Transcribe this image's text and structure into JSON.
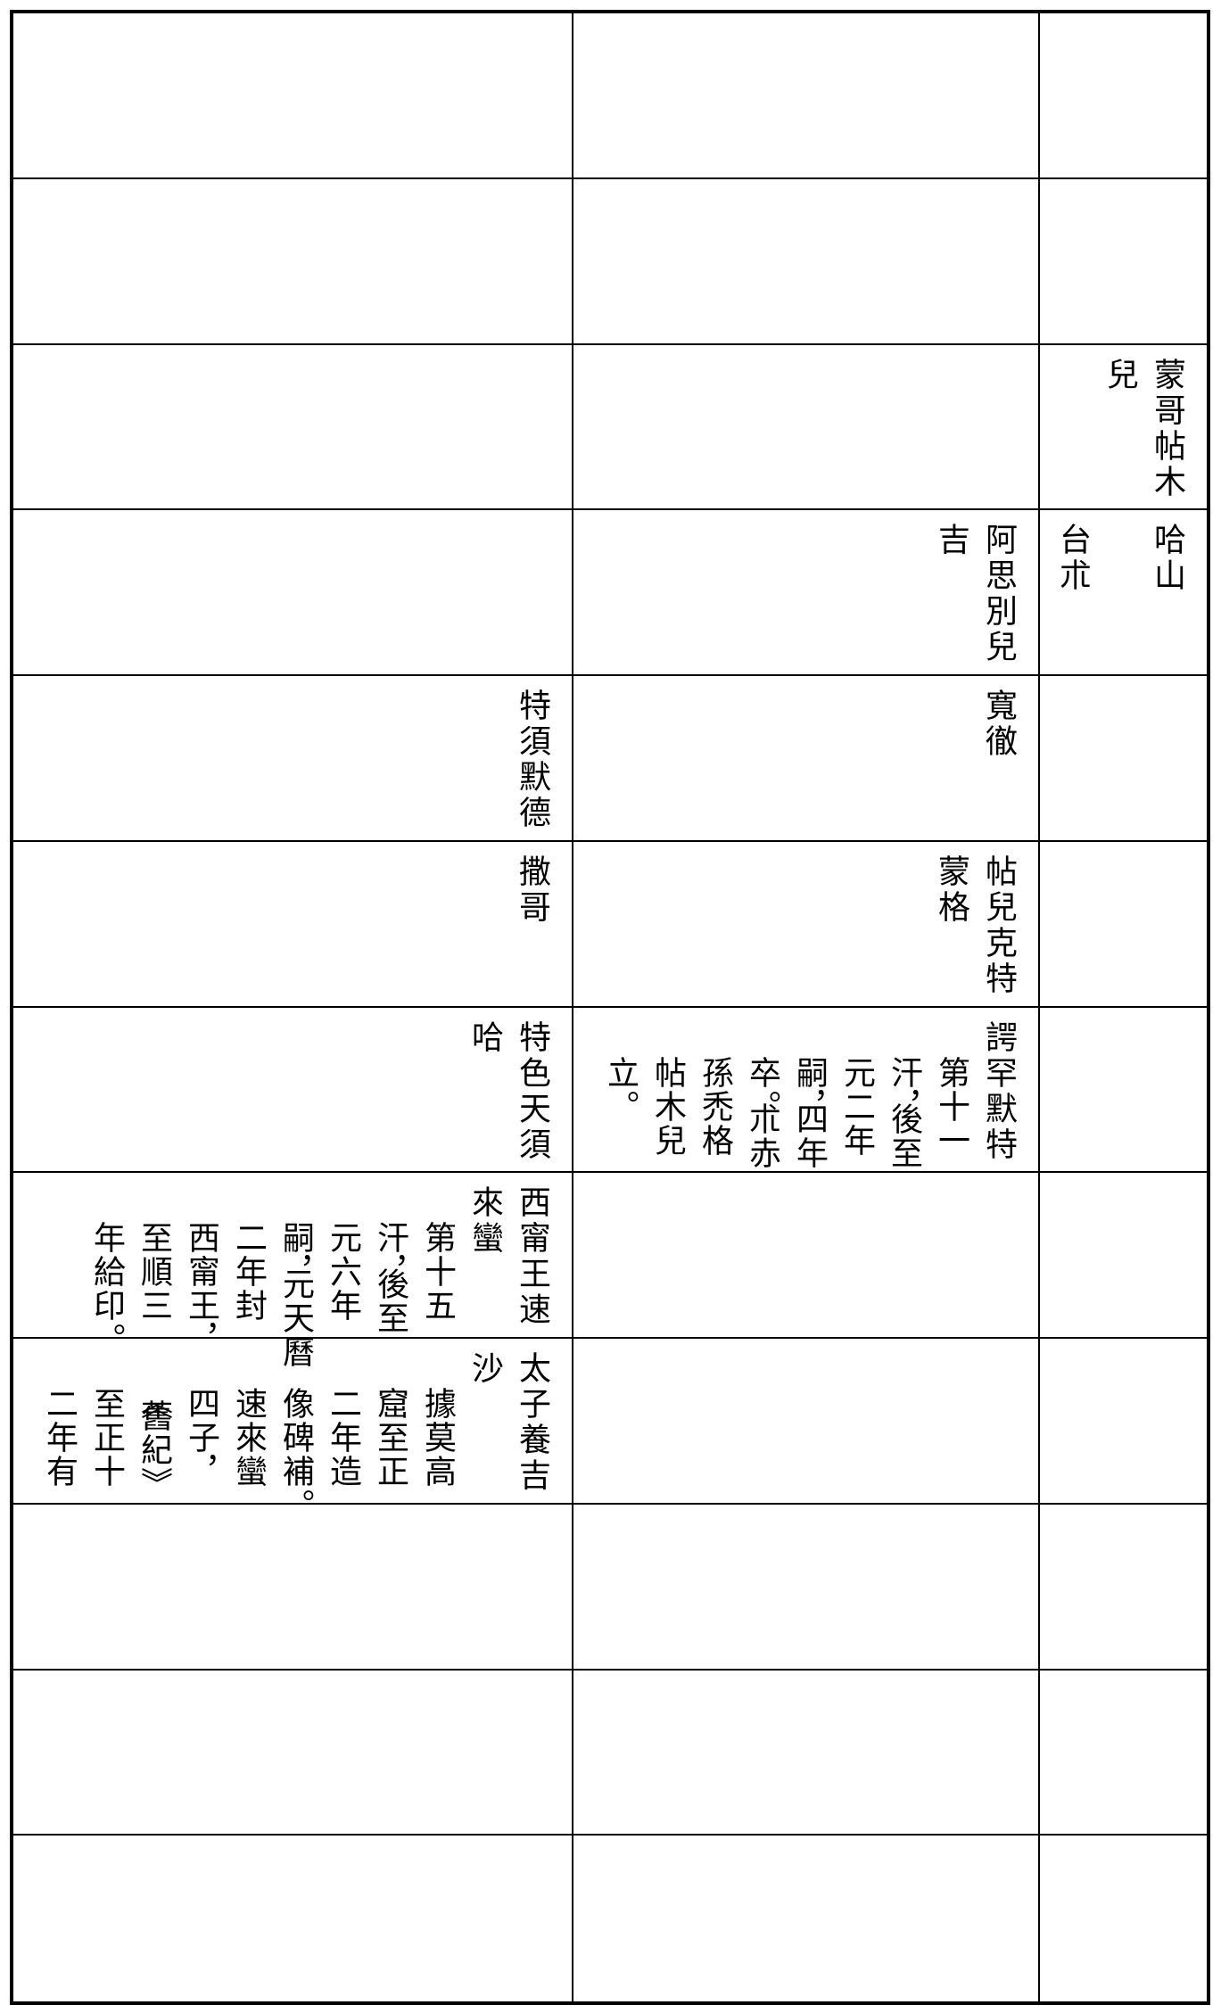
{
  "rows": [
    {
      "cells": [
        {
          "columns": []
        },
        {
          "columns": []
        },
        {
          "columns": []
        }
      ]
    },
    {
      "cells": [
        {
          "columns": []
        },
        {
          "columns": []
        },
        {
          "columns": []
        }
      ]
    },
    {
      "cells": [
        {
          "columns": [
            {
              "text": "蒙哥帖木",
              "note": false
            },
            {
              "text": "兒",
              "note": false
            }
          ]
        },
        {
          "columns": []
        },
        {
          "columns": []
        }
      ]
    },
    {
      "cells": [
        {
          "columns": [
            {
              "text": "哈山",
              "note": false
            },
            {
              "text": "",
              "note": false
            },
            {
              "text": "台朮",
              "note": false
            }
          ]
        },
        {
          "columns": [
            {
              "text": "阿思別兒",
              "note": false
            },
            {
              "text": "吉",
              "note": false
            }
          ]
        },
        {
          "columns": []
        }
      ]
    },
    {
      "cells": [
        {
          "columns": []
        },
        {
          "columns": [
            {
              "text": "寬徹",
              "note": false
            }
          ]
        },
        {
          "columns": [
            {
              "text": "特須默德",
              "note": false
            }
          ]
        }
      ]
    },
    {
      "cells": [
        {
          "columns": []
        },
        {
          "columns": [
            {
              "text": "帖兒克特",
              "note": false
            },
            {
              "text": "蒙格",
              "note": false
            }
          ]
        },
        {
          "columns": [
            {
              "text": "撒哥",
              "note": false
            }
          ]
        }
      ]
    },
    {
      "cells": [
        {
          "columns": []
        },
        {
          "columns": [
            {
              "text": "諤罕默特",
              "note": false
            },
            {
              "text": "第十一",
              "note": true
            },
            {
              "text": "汗，後至",
              "note": true
            },
            {
              "text": "元二年",
              "note": true
            },
            {
              "text": "嗣，四年",
              "note": true
            },
            {
              "text": "卒。朮赤",
              "note": true
            },
            {
              "text": "孫禿格",
              "note": true
            },
            {
              "text": "帖木兒",
              "note": true
            },
            {
              "text": "立。",
              "note": true
            }
          ]
        },
        {
          "columns": [
            {
              "text": "特色天須",
              "note": false
            },
            {
              "text": "哈",
              "note": false
            }
          ]
        }
      ]
    },
    {
      "cells": [
        {
          "columns": []
        },
        {
          "columns": []
        },
        {
          "columns": [
            {
              "text": "西甯王速",
              "note": false
            },
            {
              "text": "來蠻",
              "note": false
            },
            {
              "text": "第十五",
              "note": true
            },
            {
              "text": "汗，後至",
              "note": true
            },
            {
              "text": "元六年",
              "note": true
            },
            {
              "text": "嗣，元天曆",
              "note": true
            },
            {
              "text": "二年封",
              "note": true
            },
            {
              "text": "西甯王，",
              "note": true
            },
            {
              "text": "至順三",
              "note": true
            },
            {
              "text": "年給印。",
              "note": true
            }
          ]
        }
      ]
    },
    {
      "cells": [
        {
          "columns": []
        },
        {
          "columns": []
        },
        {
          "columns": [
            {
              "text": "太子養吉",
              "note": false
            },
            {
              "text": "沙",
              "note": false
            },
            {
              "text": "據莫高",
              "note": true
            },
            {
              "text": "窟至正",
              "note": true
            },
            {
              "text": "二年造",
              "note": true
            },
            {
              "text": "像碑補。",
              "note": true
            },
            {
              "text": "速來蠻",
              "note": true
            },
            {
              "text": "四子，",
              "note": true
            },
            {
              "text": "《舊紀》",
              "note": true
            },
            {
              "text": "至正十",
              "note": true
            },
            {
              "text": "二年有",
              "note": true
            }
          ]
        }
      ]
    },
    {
      "cells": [
        {
          "columns": []
        },
        {
          "columns": []
        },
        {
          "columns": []
        }
      ]
    },
    {
      "cells": [
        {
          "columns": []
        },
        {
          "columns": []
        },
        {
          "columns": []
        }
      ]
    },
    {
      "cells": [
        {
          "columns": []
        },
        {
          "columns": []
        },
        {
          "columns": []
        }
      ]
    }
  ]
}
